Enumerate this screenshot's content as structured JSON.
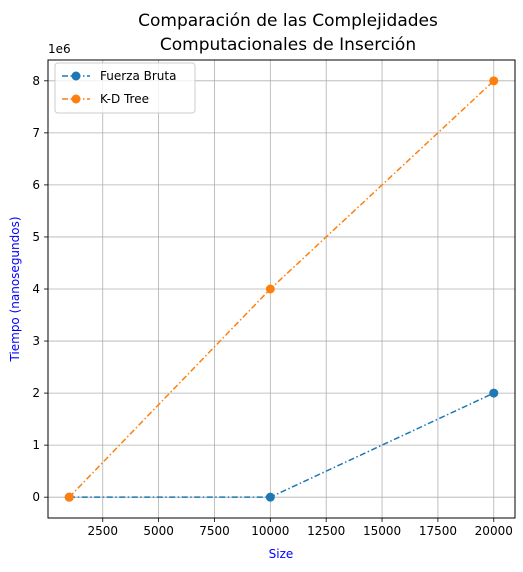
{
  "chart_data": {
    "type": "line",
    "title_lines": [
      "Comparación de las Complejidades",
      "Computacionales de Inserción"
    ],
    "xlabel": "Size",
    "ylabel": "Tiempo (nanosegundos)",
    "y_offset_label": "1e6",
    "label_color": "#0000ff",
    "xlim": [
      50,
      20950
    ],
    "ylim": [
      -0.4,
      8.4
    ],
    "x_ticks": [
      2500,
      5000,
      7500,
      10000,
      12500,
      15000,
      17500,
      20000
    ],
    "y_ticks": [
      0,
      1,
      2,
      3,
      4,
      5,
      6,
      7,
      8
    ],
    "grid": true,
    "legend_position": "top-left",
    "series": [
      {
        "name": "Fuerza Bruta",
        "color": "#1f77b4",
        "x": [
          1000,
          10000,
          20000
        ],
        "y": [
          0,
          0,
          2
        ]
      },
      {
        "name": "K-D Tree",
        "color": "#ff7f0e",
        "x": [
          1000,
          10000,
          20000
        ],
        "y": [
          0,
          4,
          8
        ]
      }
    ]
  }
}
